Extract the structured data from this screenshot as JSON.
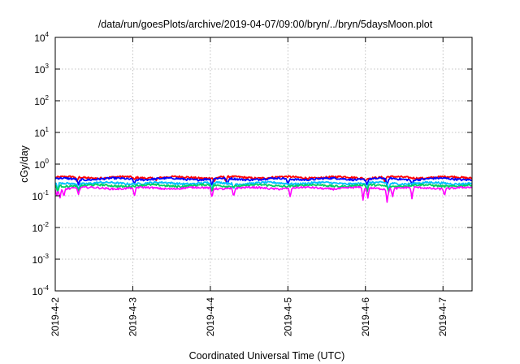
{
  "chart_data": {
    "type": "line",
    "title": "/data/run/goesPlots/archive/2019-04-07/09:00/bryn/../bryn/5daysMoon.plot",
    "xlabel": "Coordinated Universal Time (UTC)",
    "ylabel": "cGy/day",
    "x_unit": "days",
    "xlim": [
      "2019-04-02T00:00",
      "2019-04-07T09:00"
    ],
    "x_ticks": [
      {
        "label": "2019-4-2",
        "x": "2019-04-02T00:00"
      },
      {
        "label": "2019-4-3",
        "x": "2019-04-03T00:00"
      },
      {
        "label": "2019-4-4",
        "x": "2019-04-04T00:00"
      },
      {
        "label": "2019-4-5",
        "x": "2019-04-05T00:00"
      },
      {
        "label": "2019-4-6",
        "x": "2019-04-06T00:00"
      },
      {
        "label": "2019-4-7",
        "x": "2019-04-07T00:00"
      }
    ],
    "y_scale": "log",
    "ylim": [
      0.0001,
      10000
    ],
    "y_ticks": [
      {
        "base": "10",
        "exp": "-4",
        "value": 0.0001
      },
      {
        "base": "10",
        "exp": "-3",
        "value": 0.001
      },
      {
        "base": "10",
        "exp": "-2",
        "value": 0.01
      },
      {
        "base": "10",
        "exp": "-1",
        "value": 0.1
      },
      {
        "base": "10",
        "exp": "0",
        "value": 1
      },
      {
        "base": "10",
        "exp": "1",
        "value": 10
      },
      {
        "base": "10",
        "exp": "2",
        "value": 100
      },
      {
        "base": "10",
        "exp": "3",
        "value": 1000
      },
      {
        "base": "10",
        "exp": "4",
        "value": 10000
      }
    ],
    "grid": true,
    "series": [
      {
        "color": "#ff0000",
        "base": 0.38,
        "dips": [
          [
            0.28,
            0.28
          ],
          [
            1.02,
            0.32
          ],
          [
            1.3,
            0.3
          ],
          [
            2.05,
            0.27
          ],
          [
            2.2,
            0.28
          ],
          [
            4.0,
            0.3
          ],
          [
            4.25,
            0.27
          ]
        ]
      },
      {
        "color": "#0000ff",
        "base": 0.34,
        "dips": [
          [
            0.3,
            0.22
          ],
          [
            1.02,
            0.24
          ],
          [
            2.02,
            0.2
          ],
          [
            2.22,
            0.22
          ],
          [
            3.0,
            0.22
          ],
          [
            4.02,
            0.22
          ],
          [
            4.28,
            0.2
          ],
          [
            4.6,
            0.22
          ]
        ]
      },
      {
        "color": "#00bfff",
        "base": 0.25,
        "dips": [
          [
            0.03,
            0.15
          ],
          [
            0.3,
            0.16
          ],
          [
            2.02,
            0.15
          ],
          [
            2.3,
            0.16
          ],
          [
            4.02,
            0.15
          ],
          [
            4.3,
            0.15
          ]
        ]
      },
      {
        "color": "#00d060",
        "base": 0.21,
        "dips": [
          [
            0.03,
            0.13
          ],
          [
            0.3,
            0.14
          ],
          [
            2.02,
            0.13
          ],
          [
            4.02,
            0.13
          ],
          [
            4.3,
            0.13
          ]
        ]
      },
      {
        "color": "#ff00ff",
        "base": 0.175,
        "dips": [
          [
            0.02,
            0.1
          ],
          [
            0.06,
            0.08
          ],
          [
            0.11,
            0.09
          ],
          [
            0.3,
            0.11
          ],
          [
            1.02,
            0.09
          ],
          [
            2.02,
            0.08
          ],
          [
            2.3,
            0.09
          ],
          [
            3.03,
            0.09
          ],
          [
            3.97,
            0.07
          ],
          [
            4.03,
            0.08
          ],
          [
            4.28,
            0.06
          ],
          [
            4.35,
            0.09
          ],
          [
            4.6,
            0.08
          ],
          [
            5.02,
            0.1
          ]
        ]
      }
    ]
  }
}
